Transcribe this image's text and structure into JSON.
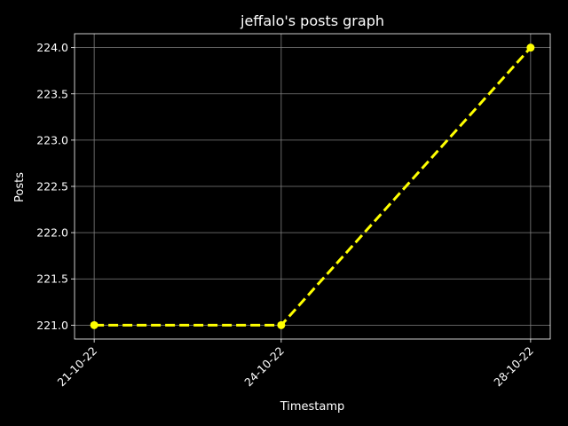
{
  "chart_data": {
    "type": "line",
    "title": "jeffalo's posts graph",
    "xlabel": "Timestamp",
    "ylabel": "Posts",
    "x": [
      "21-10-22",
      "24-10-22",
      "28-10-22"
    ],
    "series": [
      {
        "values": [
          221.0,
          221.0,
          224.0
        ]
      }
    ],
    "yticks": [
      "221.0",
      "221.5",
      "222.0",
      "222.5",
      "223.0",
      "223.5",
      "224.0"
    ],
    "ylim": [
      220.85,
      224.15
    ],
    "grid": true,
    "line_style": "dashed",
    "marker": "circle"
  },
  "colors": {
    "background": "#000000",
    "axes": "#ffffff",
    "grid": "#808080",
    "line": "#ffff00"
  }
}
